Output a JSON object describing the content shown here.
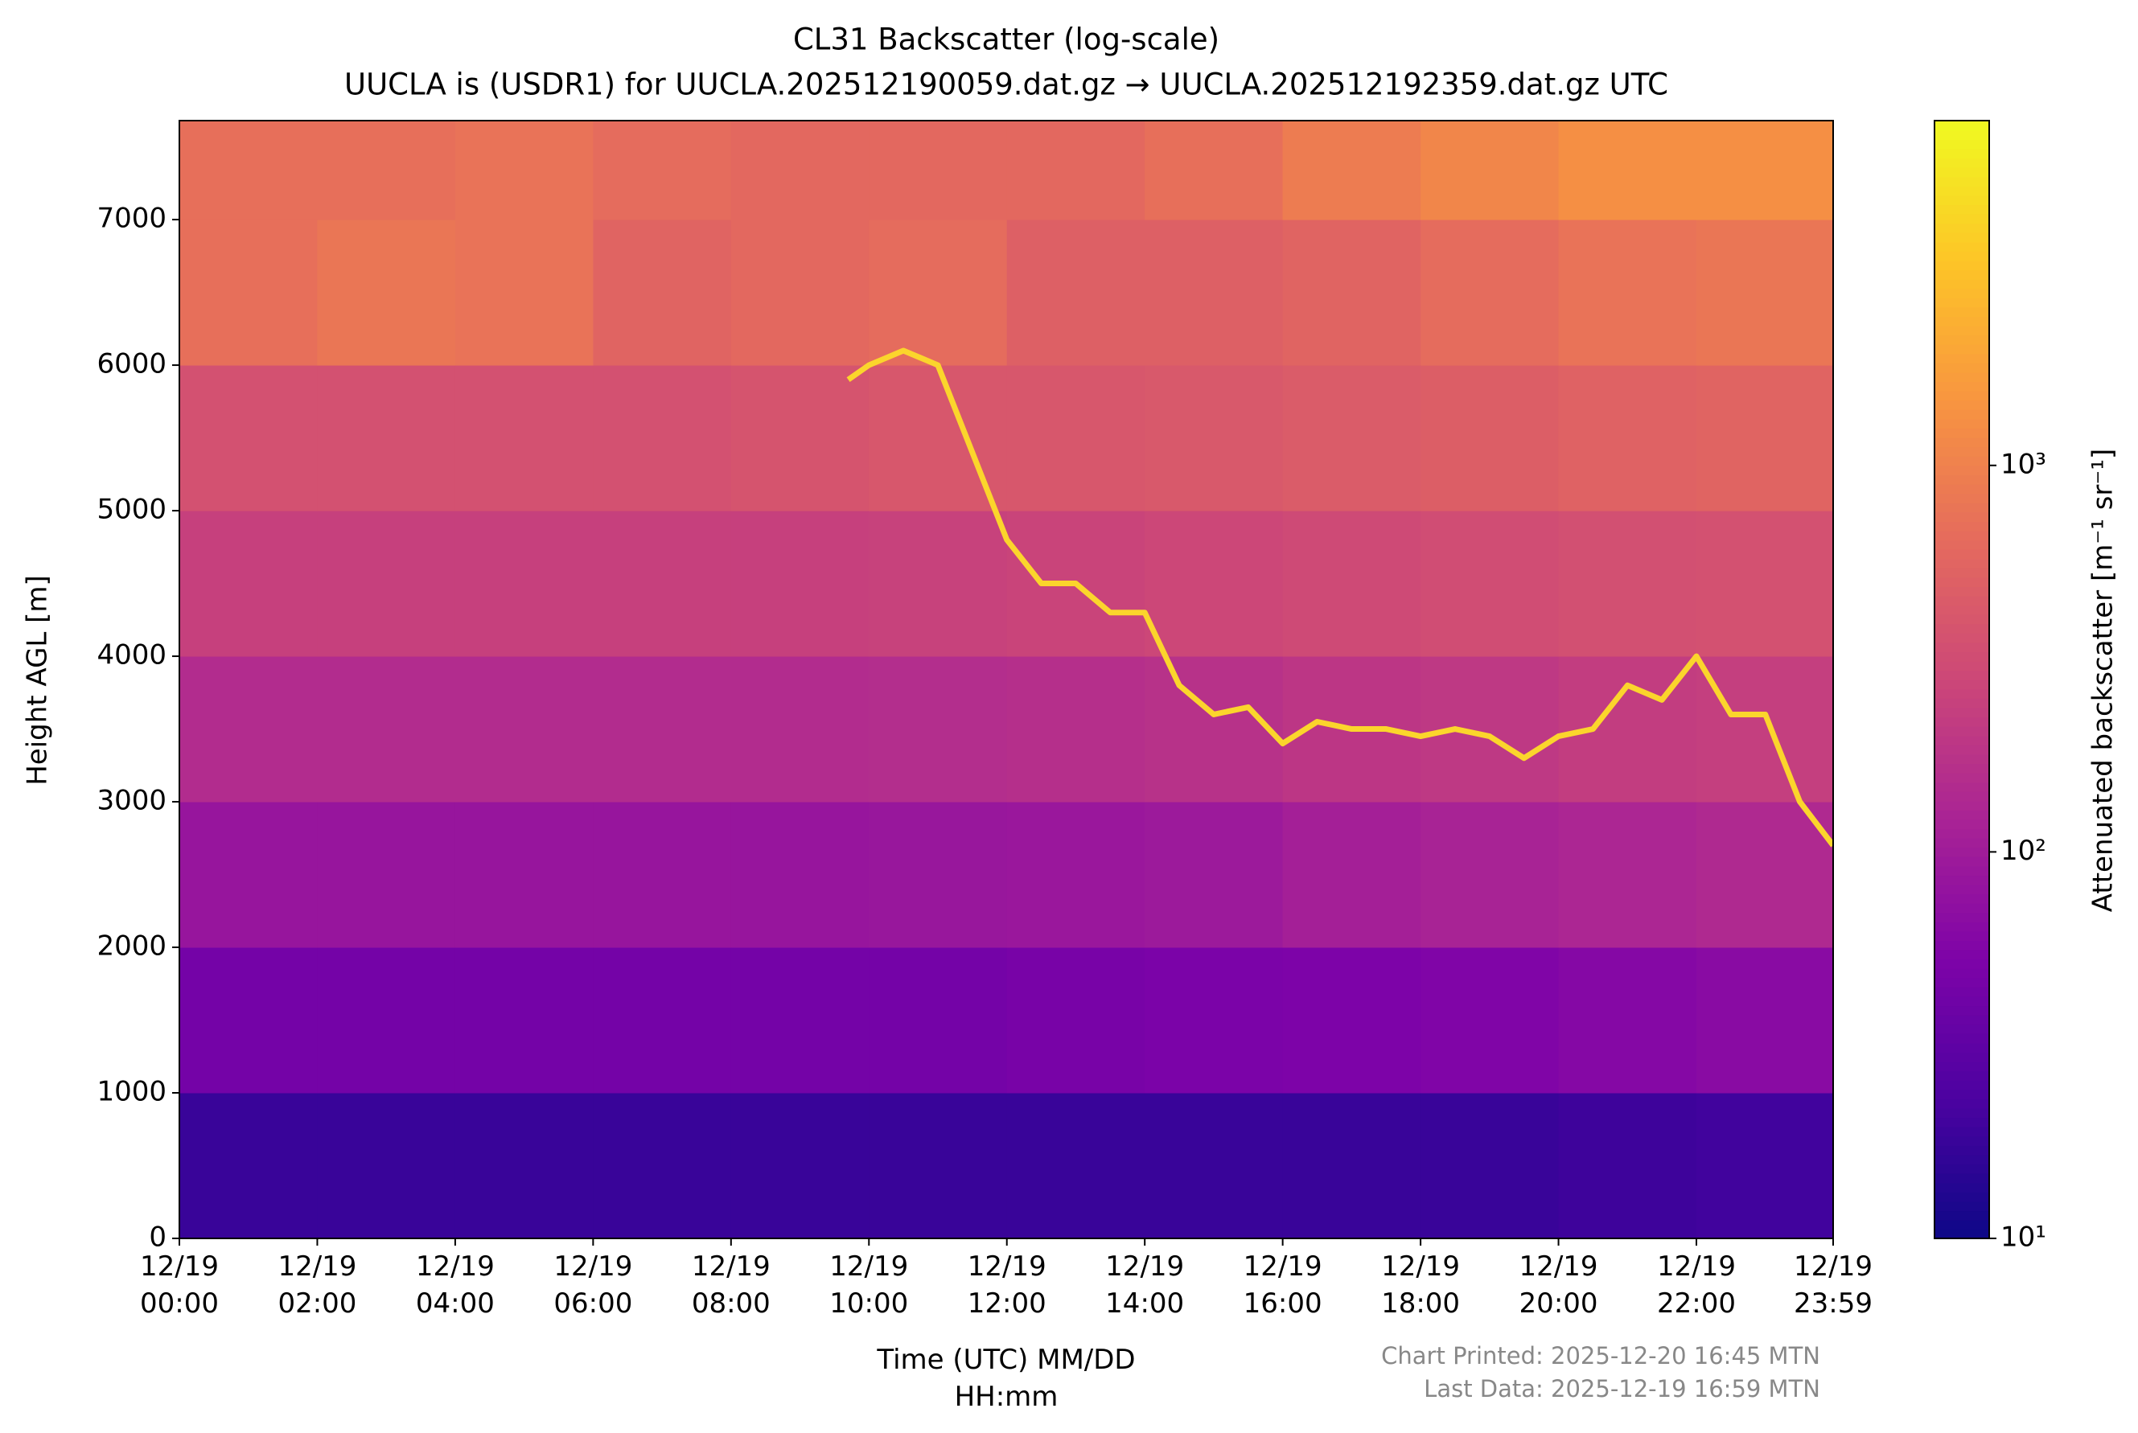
{
  "chart_data": {
    "type": "heatmap",
    "title": "CL31 Backscatter (log-scale)",
    "subtitle": "UUCLA is (USDR1) for UUCLA.202512190059.dat.gz → UUCLA.202512192359.dat.gz UTC",
    "xlabel": "Time (UTC) MM/DD\nHH:mm",
    "ylabel": "Height AGL [m]",
    "colorbar_label": "Attenuated backscatter [m⁻¹ sr⁻¹]",
    "footnotes": [
      "Chart Printed: 2025-12-20 16:45 MTN",
      "Last Data: 2025-12-19 16:59 MTN"
    ],
    "xlim": [
      0,
      23.983
    ],
    "xticks": [
      {
        "value": 0,
        "label": "12/19\n00:00"
      },
      {
        "value": 2,
        "label": "12/19\n02:00"
      },
      {
        "value": 4,
        "label": "12/19\n04:00"
      },
      {
        "value": 6,
        "label": "12/19\n06:00"
      },
      {
        "value": 8,
        "label": "12/19\n08:00"
      },
      {
        "value": 10,
        "label": "12/19\n10:00"
      },
      {
        "value": 12,
        "label": "12/19\n12:00"
      },
      {
        "value": 14,
        "label": "12/19\n14:00"
      },
      {
        "value": 16,
        "label": "12/19\n16:00"
      },
      {
        "value": 18,
        "label": "12/19\n18:00"
      },
      {
        "value": 20,
        "label": "12/19\n20:00"
      },
      {
        "value": 22,
        "label": "12/19\n22:00"
      },
      {
        "value": 23.983,
        "label": "12/19\n23:59"
      }
    ],
    "ylim": [
      0,
      7680
    ],
    "yticks": [
      0,
      1000,
      2000,
      3000,
      4000,
      5000,
      6000,
      7000
    ],
    "xbins": [
      0,
      2,
      4,
      6,
      8,
      10,
      12,
      14,
      16,
      18,
      20,
      22,
      23.983
    ],
    "ybins": [
      0,
      1000,
      2000,
      3000,
      4000,
      5000,
      6000,
      7000,
      7680
    ],
    "z": [
      [
        18,
        18,
        18,
        18,
        18,
        18,
        18,
        18,
        18,
        18,
        19,
        20
      ],
      [
        45,
        45,
        45,
        45,
        45,
        45,
        48,
        50,
        52,
        55,
        60,
        65
      ],
      [
        85,
        85,
        85,
        85,
        85,
        88,
        90,
        95,
        110,
        120,
        130,
        140
      ],
      [
        150,
        150,
        150,
        150,
        150,
        155,
        160,
        170,
        190,
        200,
        220,
        230
      ],
      [
        240,
        240,
        240,
        240,
        240,
        250,
        260,
        280,
        300,
        320,
        340,
        350
      ],
      [
        350,
        350,
        350,
        350,
        380,
        400,
        400,
        420,
        450,
        480,
        520,
        550
      ],
      [
        700,
        800,
        750,
        550,
        600,
        650,
        500,
        500,
        550,
        650,
        750,
        800
      ],
      [
        700,
        700,
        750,
        650,
        600,
        600,
        600,
        700,
        900,
        1100,
        1300,
        1300
      ]
    ],
    "clim": [
      10,
      7800
    ],
    "log_scale": true,
    "cticks": [
      {
        "value": 10,
        "label": "10¹"
      },
      {
        "value": 100,
        "label": "10²"
      },
      {
        "value": 1000,
        "label": "10³"
      }
    ],
    "layer": {
      "color": "#fbd52c",
      "x": [
        9.7,
        10,
        10.5,
        11,
        11.5,
        12,
        12.5,
        13,
        13.5,
        14,
        14.5,
        15,
        15.5,
        16,
        16.5,
        17,
        17.5,
        18,
        18.5,
        19,
        19.5,
        20,
        20.5,
        21,
        21.5,
        22,
        22.5,
        23,
        23.5,
        23.983
      ],
      "values": [
        5900,
        6000,
        6100,
        6000,
        5400,
        4800,
        4500,
        4500,
        4300,
        4300,
        3800,
        3600,
        3650,
        3400,
        3550,
        3500,
        3500,
        3450,
        3500,
        3450,
        3300,
        3450,
        3500,
        3800,
        3700,
        4000,
        3600,
        3600,
        3000,
        2700
      ]
    }
  }
}
